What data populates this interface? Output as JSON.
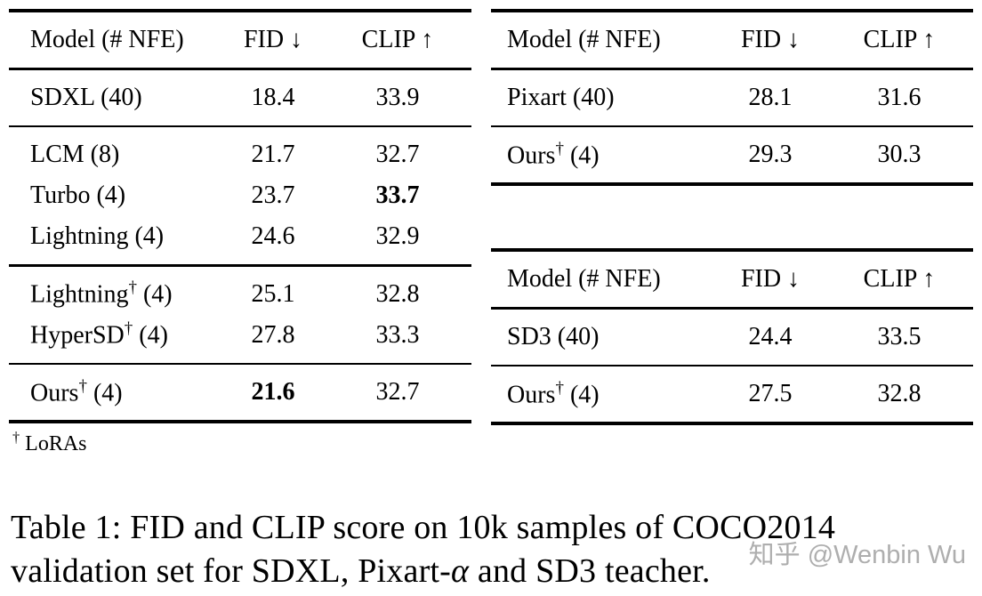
{
  "left_table": {
    "headers": {
      "model": "Model (# NFE)",
      "fid": "FID ↓",
      "clip": "CLIP ↑"
    },
    "rows": {
      "sdxl": {
        "model": [
          "SDXL (40)"
        ],
        "fid": "18.4",
        "clip": "33.9"
      },
      "lcm": {
        "model": [
          "LCM (8)"
        ],
        "fid": "21.7",
        "clip": "32.7"
      },
      "turbo": {
        "model": [
          "Turbo (4)"
        ],
        "fid": "23.7",
        "clip": "33.7"
      },
      "lightning": {
        "model": [
          "Lightning (4)"
        ],
        "fid": "24.6",
        "clip": "32.9"
      },
      "lightning_lora": {
        "model": [
          "Lightning",
          "†",
          " (4)"
        ],
        "fid": "25.1",
        "clip": "32.8"
      },
      "hypersd": {
        "model": [
          "HyperSD",
          "†",
          " (4)"
        ],
        "fid": "27.8",
        "clip": "33.3"
      },
      "ours": {
        "model": [
          "Ours",
          "†",
          " (4)"
        ],
        "fid": "21.6",
        "clip": "32.7"
      }
    },
    "footnote": {
      "sup": "†",
      "text": " LoRAs"
    }
  },
  "pixart_table": {
    "headers": {
      "model": "Model (# NFE)",
      "fid": "FID ↓",
      "clip": "CLIP ↑"
    },
    "rows": {
      "pixart": {
        "model": [
          "Pixart (40)"
        ],
        "fid": "28.1",
        "clip": "31.6"
      },
      "ours": {
        "model": [
          "Ours",
          "†",
          " (4)"
        ],
        "fid": "29.3",
        "clip": "30.3"
      }
    }
  },
  "sd3_table": {
    "headers": {
      "model": "Model (# NFE)",
      "fid": "FID ↓",
      "clip": "CLIP ↑"
    },
    "rows": {
      "sd3": {
        "model": [
          "SD3 (40)"
        ],
        "fid": "24.4",
        "clip": "33.5"
      },
      "ours": {
        "model": [
          "Ours",
          "†",
          " (4)"
        ],
        "fid": "27.5",
        "clip": "32.8"
      }
    }
  },
  "caption": {
    "line1": "Table 1: FID and CLIP score on 10k samples of COCO2014",
    "line2_pre": "validation set for SDXL, Pixart-",
    "line2_alpha": "α",
    "line2_post": " and SD3 teacher."
  },
  "watermark": "知乎 @Wenbin Wu",
  "colors": {
    "rule": "#000000",
    "watermark": "#a6a6a6"
  }
}
